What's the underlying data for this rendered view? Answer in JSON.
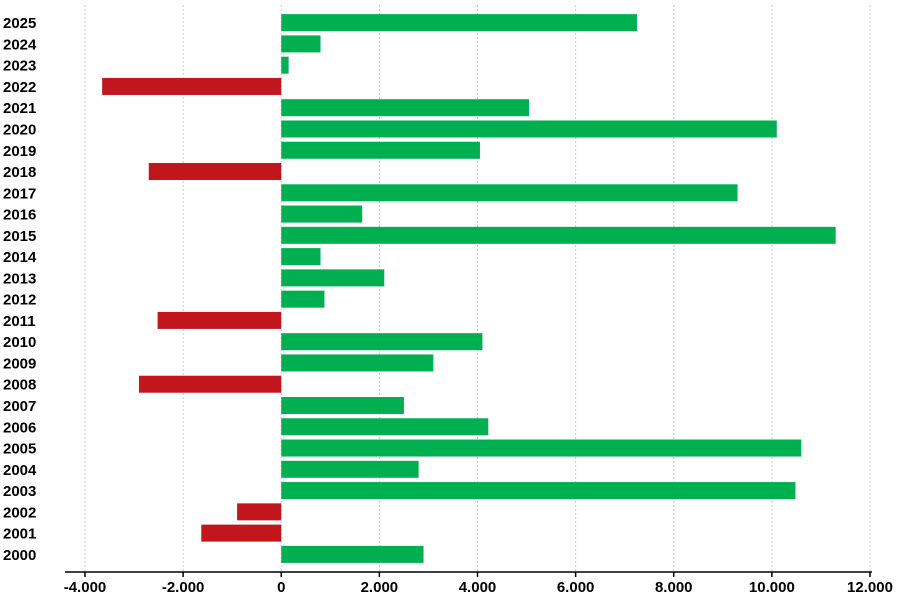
{
  "chart_data": {
    "type": "bar",
    "orientation": "horizontal",
    "categories": [
      "2025",
      "2024",
      "2023",
      "2022",
      "2021",
      "2020",
      "2019",
      "2018",
      "2017",
      "2016",
      "2015",
      "2014",
      "2013",
      "2012",
      "2011",
      "2010",
      "2009",
      "2008",
      "2007",
      "2006",
      "2005",
      "2004",
      "2003",
      "2002",
      "2001",
      "2000"
    ],
    "values": [
      7250,
      800,
      150,
      -3650,
      5050,
      10100,
      4050,
      -2700,
      9300,
      1650,
      11300,
      800,
      2100,
      880,
      -2520,
      4100,
      3100,
      -2900,
      2500,
      4220,
      10600,
      2800,
      10480,
      -900,
      -1630,
      2900
    ],
    "xlim": [
      -4000,
      12000
    ],
    "xticks": [
      -4000,
      -2000,
      0,
      2000,
      4000,
      6000,
      8000,
      10000,
      12000
    ],
    "xtick_labels": [
      "-4.000",
      "-2.000",
      "0",
      "2.000",
      "4.000",
      "6.000",
      "8.000",
      "10.000",
      "12.000"
    ],
    "colors": {
      "positive": "#00b050",
      "negative": "#c0161c"
    },
    "grid": true,
    "title": "",
    "xlabel": "",
    "ylabel": ""
  }
}
